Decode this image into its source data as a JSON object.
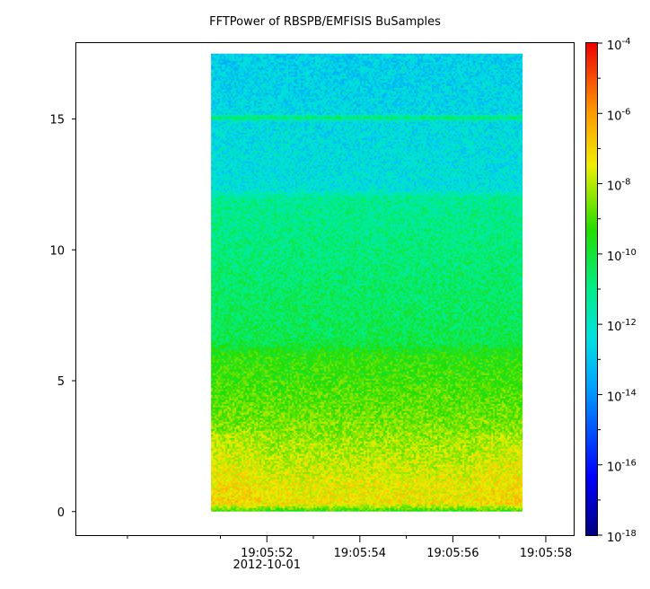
{
  "title": "FFTPower of RBSPB/EMFISIS  BuSamples",
  "chart_data": {
    "type": "heatmap",
    "title": "FFTPower of RBSPB/EMFISIS  BuSamples",
    "xlabel": "",
    "ylabel": "",
    "x_axis": {
      "type": "time",
      "date_label": "2012-10-01",
      "ticks": [
        "19:05:52",
        "19:05:54",
        "19:05:56",
        "19:05:58"
      ],
      "range": [
        "19:05:47.9",
        "19:05:58.6"
      ]
    },
    "y_axis": {
      "ticks": [
        0,
        5,
        10,
        15
      ],
      "tick_labels": [
        "0",
        "5",
        "10",
        "15"
      ],
      "range": [
        -0.9,
        17.9
      ]
    },
    "data_extent": {
      "x": [
        "19:05:50.8",
        "19:05:57.5"
      ],
      "y": [
        0,
        17.5
      ]
    },
    "colorbar": {
      "scale": "log",
      "range": [
        1e-18,
        0.0001
      ],
      "ticks": [
        {
          "base": "10",
          "exp": "-4",
          "value": 0.0001
        },
        {
          "base": "10",
          "exp": "-6",
          "value": 1e-06
        },
        {
          "base": "10",
          "exp": "-8",
          "value": 1e-08
        },
        {
          "base": "10",
          "exp": "-10",
          "value": 1e-10
        },
        {
          "base": "10",
          "exp": "-12",
          "value": 1e-12
        },
        {
          "base": "10",
          "exp": "-14",
          "value": 1e-14
        },
        {
          "base": "10",
          "exp": "-16",
          "value": 1e-16
        },
        {
          "base": "10",
          "exp": "-18",
          "value": 1e-18
        }
      ],
      "colormap": "rainbow: dark blue (low) to cyan, green, yellow, orange, red (high)"
    },
    "power_profile_log10": [
      {
        "y": 0.0,
        "value": -9.5
      },
      {
        "y": 0.3,
        "value": -7.3
      },
      {
        "y": 1.0,
        "value": -7.5
      },
      {
        "y": 2.5,
        "value": -8.2
      },
      {
        "y": 4.0,
        "value": -8.8
      },
      {
        "y": 6.0,
        "value": -9.4
      },
      {
        "y": 6.5,
        "value": -10.3
      },
      {
        "y": 9.0,
        "value": -10.7
      },
      {
        "y": 12.0,
        "value": -11.2
      },
      {
        "y": 12.3,
        "value": -12.3
      },
      {
        "y": 14.9,
        "value": -12.5
      },
      {
        "y": 15.05,
        "value": -10.5
      },
      {
        "y": 15.2,
        "value": -12.6
      },
      {
        "y": 17.5,
        "value": -12.8
      }
    ],
    "grid": false,
    "legend": "colorbar right"
  }
}
